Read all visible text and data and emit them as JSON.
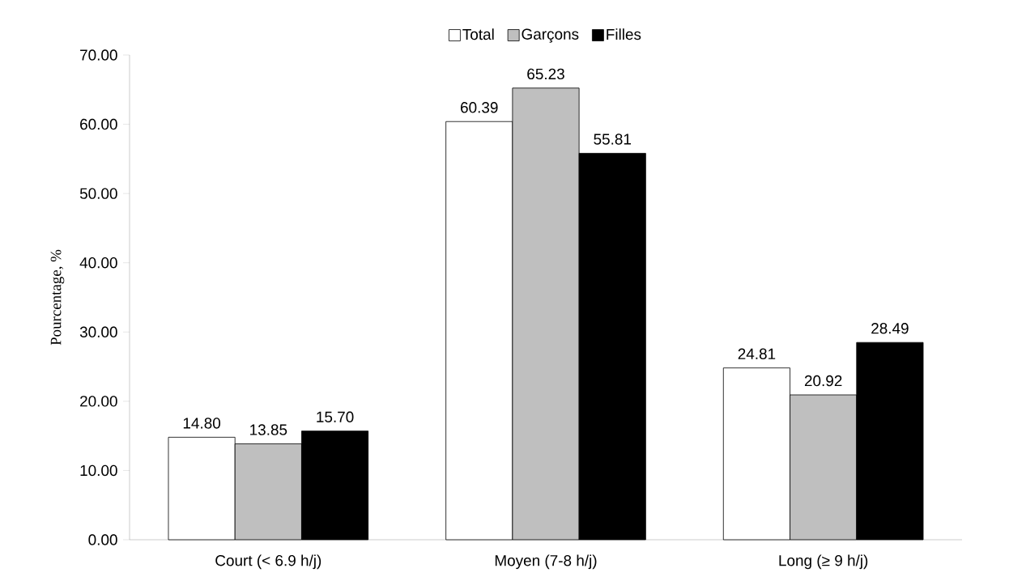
{
  "chart_data": {
    "type": "bar",
    "ylabel": "Pourcentage, %",
    "categories": [
      "Court (< 6.9 h/j)",
      "Moyen (7-8 h/j)",
      "Long (≥ 9 h/j)"
    ],
    "series": [
      {
        "name": "Total",
        "color": "#ffffff",
        "values": [
          14.8,
          60.39,
          24.81
        ],
        "value_labels": [
          "14.80",
          "60.39",
          "24.81"
        ]
      },
      {
        "name": "Garçons",
        "color": "#bfbfbf",
        "values": [
          13.85,
          65.23,
          20.92
        ],
        "value_labels": [
          "13.85",
          "65.23",
          "20.92"
        ]
      },
      {
        "name": "Filles",
        "color": "#000000",
        "values": [
          15.7,
          55.81,
          28.49
        ],
        "value_labels": [
          "15.70",
          "55.81",
          "28.49"
        ]
      }
    ],
    "ylim": [
      0,
      70
    ],
    "yticks": [
      {
        "value": 0,
        "label": "0.00"
      },
      {
        "value": 10,
        "label": "10.00"
      },
      {
        "value": 20,
        "label": "20.00"
      },
      {
        "value": 30,
        "label": "30.00"
      },
      {
        "value": 40,
        "label": "40.00"
      },
      {
        "value": 50,
        "label": "50.00"
      },
      {
        "value": 60,
        "label": "60.00"
      },
      {
        "value": 70,
        "label": "70.00"
      }
    ],
    "legend": "top"
  }
}
